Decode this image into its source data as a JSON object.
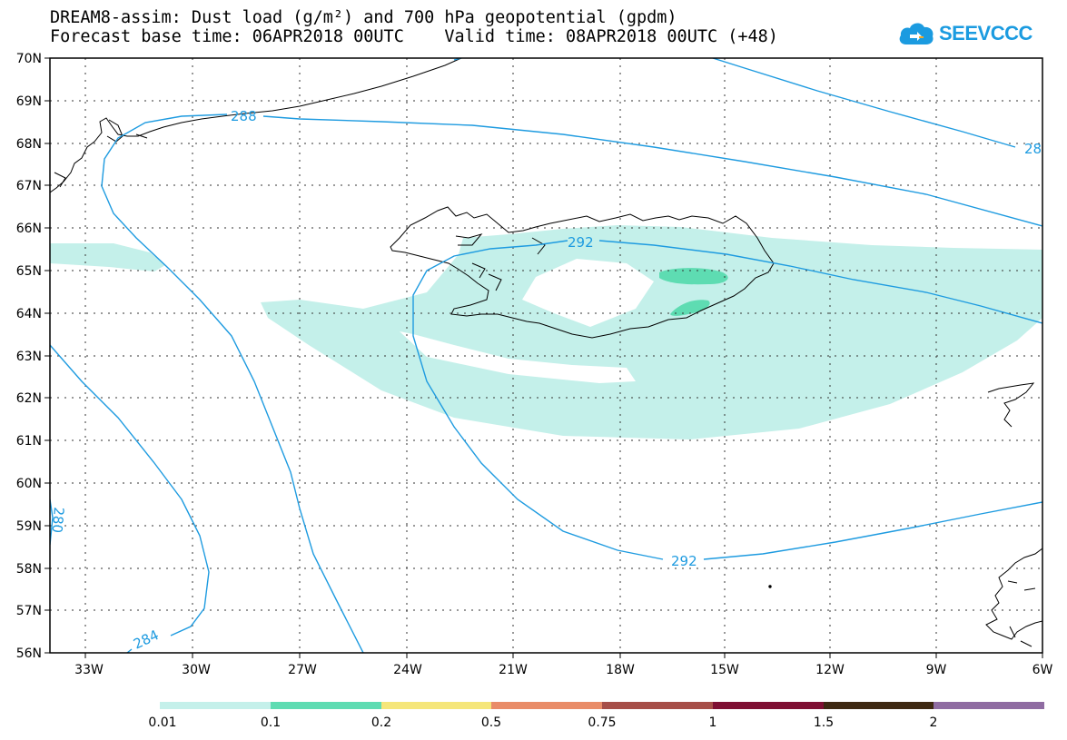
{
  "header": {
    "line1": "DREAM8-assim: Dust load (g/m²) and 700 hPa geopotential (gpdm)",
    "line2": "Forecast base time: 06APR2018 00UTC    Valid time: 08APR2018 00UTC (+48)"
  },
  "logo": {
    "text": "SEEVCCC",
    "icon": "cloud-icon",
    "color": "#1b9be0"
  },
  "map": {
    "lat_labels": [
      "70N",
      "69N",
      "68N",
      "67N",
      "66N",
      "65N",
      "64N",
      "63N",
      "62N",
      "61N",
      "60N",
      "59N",
      "58N",
      "57N",
      "56N"
    ],
    "lon_labels": [
      "33W",
      "30W",
      "27W",
      "24W",
      "21W",
      "18W",
      "15W",
      "12W",
      "9W",
      "6W"
    ],
    "contour_labels": [
      "288",
      "292",
      "292",
      "284",
      "28",
      "280"
    ],
    "contour_color": "#1e9be0",
    "coast_color": "#000000"
  },
  "colorbar": {
    "labels": [
      "0.01",
      "0.1",
      "0.2",
      "0.5",
      "0.75",
      "1",
      "1.5",
      "2"
    ],
    "colors": [
      "#c4f0ea",
      "#5edcb2",
      "#f5e67a",
      "#e98c68",
      "#a64e48",
      "#7e0f33",
      "#3e2812",
      "#8f6ca2"
    ]
  }
}
